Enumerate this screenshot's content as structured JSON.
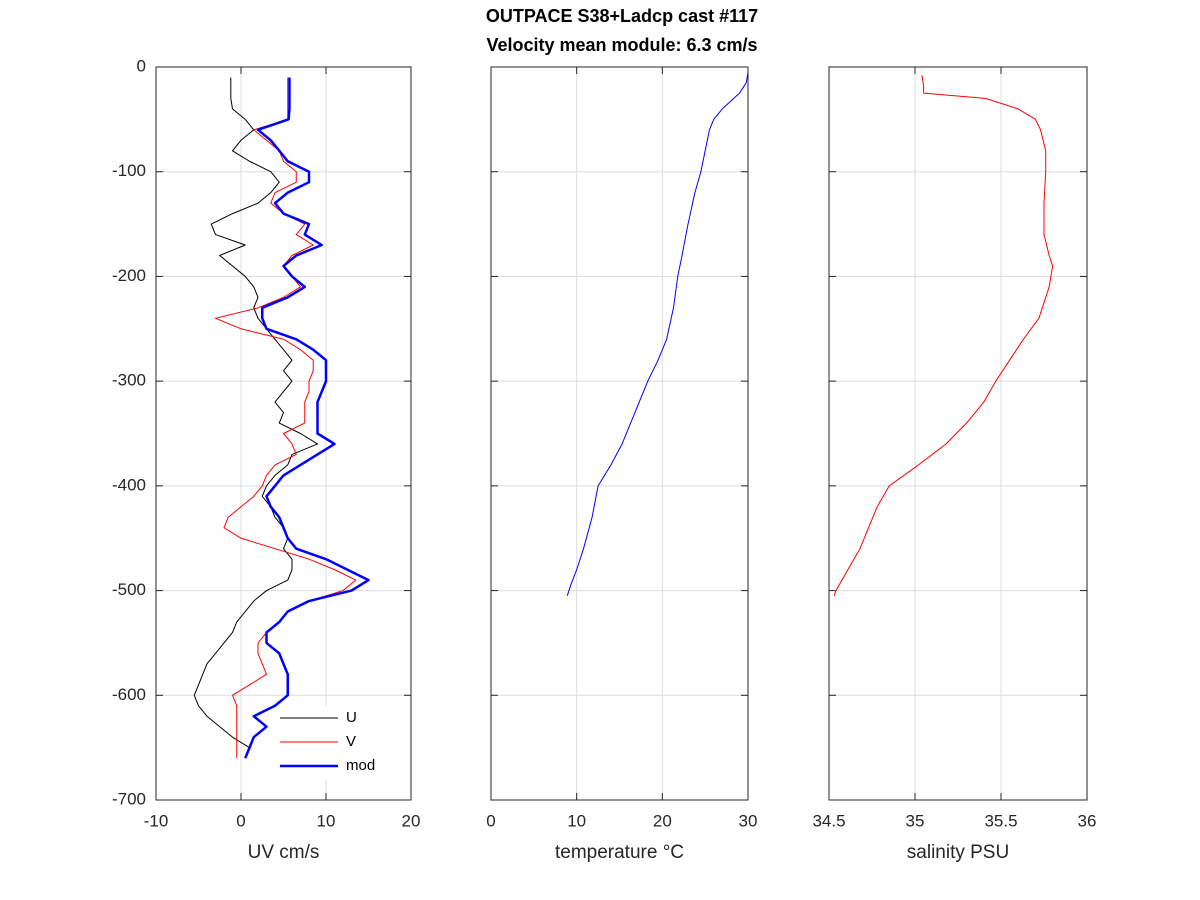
{
  "title": "OUTPACE S38+Ladcp cast #117",
  "subtitle": "Velocity mean module:  6.3 cm/s",
  "chart_data": [
    {
      "type": "line",
      "xlabel": "UV cm/s",
      "xlim": [
        -10,
        20
      ],
      "xticks": [
        -10,
        0,
        10,
        20
      ],
      "ylim": [
        -700,
        0
      ],
      "yticks": [
        -700,
        -600,
        -500,
        -400,
        -300,
        -200,
        -100,
        0
      ],
      "ytick_labels": true,
      "grid": true,
      "legend": "southeast",
      "series": [
        {
          "name": "U",
          "color": "#000000",
          "width": 1,
          "y": [
            -10,
            -20,
            -30,
            -40,
            -50,
            -60,
            -70,
            -80,
            -90,
            -100,
            -110,
            -120,
            -130,
            -140,
            -150,
            -160,
            -170,
            -180,
            -190,
            -200,
            -210,
            -220,
            -230,
            -240,
            -250,
            -260,
            -270,
            -280,
            -290,
            -300,
            -310,
            -320,
            -330,
            -340,
            -350,
            -360,
            -370,
            -380,
            -390,
            -400,
            -410,
            -420,
            -430,
            -440,
            -450,
            -460,
            -470,
            -480,
            -490,
            -500,
            -510,
            -520,
            -530,
            -540,
            -550,
            -560,
            -570,
            -580,
            -590,
            -600,
            -610,
            -620,
            -630,
            -640,
            -650,
            -660
          ],
          "x": [
            -1.2,
            -1.2,
            -1.2,
            -1,
            0.5,
            1.5,
            0,
            -1,
            1,
            3.5,
            4.5,
            3.5,
            2,
            -1,
            -3.5,
            -3,
            0.5,
            -2.5,
            -1,
            0.5,
            1.5,
            2,
            1.5,
            2,
            3,
            4,
            5,
            6,
            5,
            6,
            5,
            4,
            5,
            4.5,
            7,
            9,
            6,
            5.5,
            4,
            3,
            2.5,
            3.5,
            4,
            5,
            5.5,
            5,
            6,
            6,
            5.5,
            3,
            1.5,
            0.5,
            -0.5,
            -1,
            -2,
            -3,
            -4,
            -4.5,
            -5,
            -5.5,
            -5,
            -4,
            -2.5,
            -1,
            1,
            0.5
          ]
        },
        {
          "name": "V",
          "color": "#ff0000",
          "width": 1,
          "y": [
            -10,
            -20,
            -30,
            -40,
            -50,
            -60,
            -70,
            -80,
            -90,
            -100,
            -110,
            -120,
            -130,
            -140,
            -150,
            -160,
            -170,
            -180,
            -190,
            -200,
            -210,
            -220,
            -230,
            -240,
            -250,
            -260,
            -270,
            -280,
            -290,
            -300,
            -310,
            -320,
            -330,
            -340,
            -350,
            -360,
            -370,
            -380,
            -390,
            -400,
            -410,
            -420,
            -430,
            -440,
            -450,
            -460,
            -470,
            -480,
            -490,
            -500,
            -510,
            -520,
            -530,
            -540,
            -550,
            -560,
            -570,
            -580,
            -590,
            -600,
            -610,
            -620,
            -630,
            -640,
            -650,
            -660
          ],
          "x": [
            5.5,
            5.5,
            5.5,
            5.5,
            5.5,
            1.5,
            3,
            4.5,
            5,
            6.5,
            6.5,
            4,
            3.5,
            5,
            7.5,
            6.5,
            8.5,
            6,
            5,
            6,
            7,
            5,
            2,
            -3,
            0,
            5,
            7,
            8.5,
            8.5,
            8,
            8,
            7.5,
            7.5,
            7.5,
            5,
            6,
            6.5,
            4,
            3,
            2.5,
            1.5,
            0,
            -1.5,
            -2,
            0,
            4,
            8,
            11,
            13.5,
            12,
            8,
            5.5,
            4.5,
            3,
            2,
            2,
            2.5,
            3,
            1,
            -1,
            -0.5,
            -0.5,
            -0.5,
            -0.5,
            -0.5,
            -0.5
          ]
        },
        {
          "name": "mod",
          "color": "#0000ff",
          "width": 2.5,
          "y": [
            -10,
            -20,
            -30,
            -40,
            -50,
            -60,
            -70,
            -80,
            -90,
            -100,
            -110,
            -120,
            -130,
            -140,
            -150,
            -160,
            -170,
            -180,
            -190,
            -200,
            -210,
            -220,
            -230,
            -240,
            -250,
            -260,
            -270,
            -280,
            -290,
            -300,
            -310,
            -320,
            -330,
            -340,
            -350,
            -360,
            -370,
            -380,
            -390,
            -400,
            -410,
            -420,
            -430,
            -440,
            -450,
            -460,
            -470,
            -480,
            -490,
            -500,
            -510,
            -520,
            -530,
            -540,
            -550,
            -560,
            -570,
            -580,
            -590,
            -600,
            -610,
            -620,
            -630,
            -640,
            -650,
            -660
          ],
          "x": [
            5.7,
            5.7,
            5.7,
            5.7,
            5.6,
            2,
            3.5,
            4.5,
            5.5,
            8,
            8,
            5.5,
            4,
            5,
            8,
            7.5,
            9.5,
            6.5,
            5,
            6,
            7.5,
            5.5,
            2.5,
            2.5,
            3,
            6.5,
            8.5,
            10,
            10,
            10,
            9.5,
            9,
            9,
            9,
            9,
            11,
            9,
            7,
            5,
            4,
            3,
            3.5,
            4.5,
            5,
            5.5,
            6.5,
            10,
            12.5,
            15,
            13,
            8,
            5.5,
            4.5,
            3,
            3,
            4.5,
            5,
            5.5,
            5.5,
            5.5,
            4,
            1.5,
            3,
            1.5,
            1,
            0.5
          ]
        }
      ]
    },
    {
      "type": "line",
      "xlabel": "temperature °C",
      "xlim": [
        0,
        30
      ],
      "xticks": [
        0,
        10,
        20,
        30
      ],
      "ylim": [
        -700,
        0
      ],
      "yticks": [
        -700,
        -600,
        -500,
        -400,
        -300,
        -200,
        -100,
        0
      ],
      "ytick_labels": false,
      "grid": true,
      "series": [
        {
          "color": "#0000ff",
          "width": 1,
          "y": [
            -5,
            -15,
            -25,
            -40,
            -50,
            -60,
            -80,
            -100,
            -120,
            -150,
            -180,
            -200,
            -230,
            -260,
            -280,
            -300,
            -330,
            -360,
            -380,
            -400,
            -430,
            -460,
            -480,
            -495,
            -505
          ],
          "x": [
            30,
            29.8,
            29,
            27,
            26,
            25.5,
            25,
            24.5,
            23.8,
            23,
            22.3,
            21.8,
            21.3,
            20.5,
            19.5,
            18.3,
            16.8,
            15.3,
            14,
            12.5,
            11.8,
            10.8,
            10,
            9.3,
            8.9
          ]
        }
      ]
    },
    {
      "type": "line",
      "xlabel": "salinity PSU",
      "xlim": [
        34.5,
        36
      ],
      "xticks": [
        34.5,
        35,
        35.5,
        36
      ],
      "ylim": [
        -700,
        0
      ],
      "yticks": [
        -700,
        -600,
        -500,
        -400,
        -300,
        -200,
        -100,
        0
      ],
      "ytick_labels": false,
      "grid": true,
      "series": [
        {
          "color": "#ff0000",
          "width": 1,
          "y": [
            -8,
            -18,
            -25,
            -30,
            -40,
            -50,
            -60,
            -80,
            -100,
            -130,
            -160,
            -180,
            -190,
            -210,
            -240,
            -260,
            -280,
            -300,
            -320,
            -340,
            -360,
            -370,
            -380,
            -400,
            -420,
            -440,
            -460,
            -480,
            -500,
            -505
          ],
          "x": [
            35.04,
            35.05,
            35.05,
            35.41,
            35.6,
            35.7,
            35.73,
            35.76,
            35.76,
            35.75,
            35.75,
            35.78,
            35.8,
            35.78,
            35.72,
            35.63,
            35.55,
            35.47,
            35.4,
            35.3,
            35.18,
            35.1,
            35.02,
            34.85,
            34.78,
            34.73,
            34.68,
            34.61,
            34.54,
            34.53
          ]
        }
      ]
    }
  ]
}
